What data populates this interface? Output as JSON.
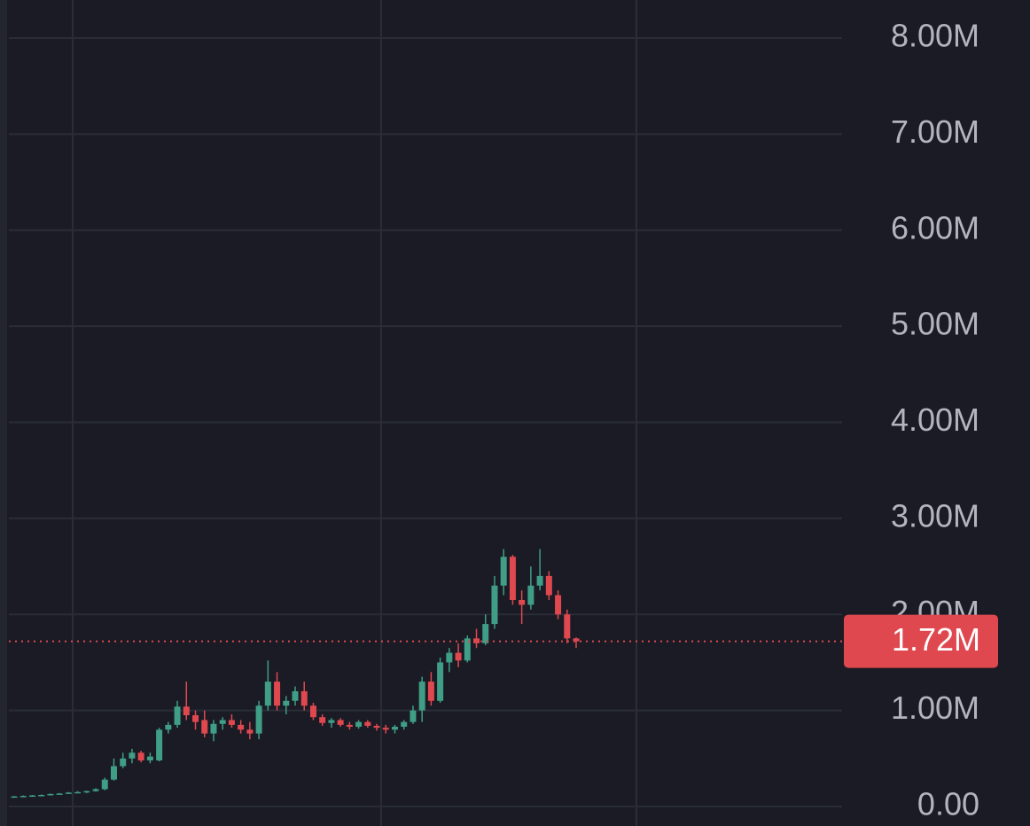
{
  "chart_data": {
    "type": "candlestick",
    "ylim": [
      0,
      8000000
    ],
    "yticks": [
      {
        "value": 0,
        "label": "0.00"
      },
      {
        "value": 1000000,
        "label": "1.00M"
      },
      {
        "value": 2000000,
        "label": "2.00M"
      },
      {
        "value": 3000000,
        "label": "3.00M"
      },
      {
        "value": 4000000,
        "label": "4.00M"
      },
      {
        "value": 5000000,
        "label": "5.00M"
      },
      {
        "value": 6000000,
        "label": "6.00M"
      },
      {
        "value": 7000000,
        "label": "7.00M"
      },
      {
        "value": 8000000,
        "label": "8.00M"
      }
    ],
    "grid": true,
    "up_color": "#3f9e85",
    "down_color": "#e0484f",
    "last_price": {
      "value": 1720000,
      "label": "1.72M"
    },
    "open": [
      100000,
      105000,
      110000,
      115000,
      120000,
      130000,
      135000,
      145000,
      150000,
      160000,
      180000,
      280000,
      420000,
      500000,
      560000,
      480000,
      480000,
      800000,
      850000,
      1040000,
      950000,
      900000,
      760000,
      860000,
      900000,
      850000,
      800000,
      760000,
      1050000,
      1300000,
      1050000,
      1100000,
      1200000,
      1050000,
      930000,
      870000,
      900000,
      850000,
      830000,
      880000,
      840000,
      820000,
      800000,
      830000,
      880000,
      1000000,
      1300000,
      1100000,
      1500000,
      1600000,
      1520000,
      1750000,
      1700000,
      1900000,
      2300000,
      2600000,
      2150000,
      2100000,
      2300000,
      2400000,
      2200000,
      2000000,
      1750000
    ],
    "high": [
      110000,
      115000,
      120000,
      125000,
      135000,
      140000,
      150000,
      160000,
      165000,
      190000,
      300000,
      500000,
      560000,
      600000,
      580000,
      560000,
      820000,
      880000,
      1100000,
      1300000,
      1000000,
      1000000,
      900000,
      930000,
      960000,
      900000,
      880000,
      1100000,
      1520000,
      1400000,
      1150000,
      1250000,
      1300000,
      1080000,
      960000,
      920000,
      920000,
      880000,
      900000,
      900000,
      860000,
      850000,
      850000,
      900000,
      1050000,
      1350000,
      1400000,
      1550000,
      1650000,
      1700000,
      1780000,
      1850000,
      2000000,
      2400000,
      2680000,
      2620000,
      2250000,
      2500000,
      2680000,
      2450000,
      2250000,
      2050000,
      1760000
    ],
    "low": [
      95000,
      100000,
      105000,
      110000,
      115000,
      125000,
      130000,
      140000,
      140000,
      155000,
      170000,
      270000,
      400000,
      450000,
      460000,
      450000,
      470000,
      760000,
      820000,
      900000,
      800000,
      720000,
      680000,
      800000,
      820000,
      760000,
      700000,
      700000,
      1000000,
      1000000,
      960000,
      1050000,
      1000000,
      900000,
      840000,
      820000,
      830000,
      800000,
      810000,
      820000,
      790000,
      760000,
      760000,
      800000,
      860000,
      880000,
      1050000,
      1080000,
      1400000,
      1450000,
      1500000,
      1650000,
      1680000,
      1850000,
      2200000,
      2100000,
      1900000,
      2050000,
      2250000,
      2150000,
      1950000,
      1700000,
      1650000
    ],
    "close": [
      105000,
      110000,
      115000,
      120000,
      130000,
      135000,
      145000,
      150000,
      160000,
      180000,
      280000,
      420000,
      500000,
      560000,
      480000,
      520000,
      800000,
      850000,
      1040000,
      950000,
      880000,
      760000,
      860000,
      900000,
      850000,
      800000,
      760000,
      1050000,
      1300000,
      1050000,
      1100000,
      1200000,
      1050000,
      930000,
      870000,
      900000,
      850000,
      830000,
      880000,
      840000,
      820000,
      800000,
      830000,
      880000,
      1000000,
      1300000,
      1100000,
      1500000,
      1600000,
      1520000,
      1750000,
      1700000,
      1900000,
      2300000,
      2600000,
      2150000,
      2100000,
      2300000,
      2400000,
      2200000,
      2000000,
      1750000,
      1720000
    ]
  }
}
